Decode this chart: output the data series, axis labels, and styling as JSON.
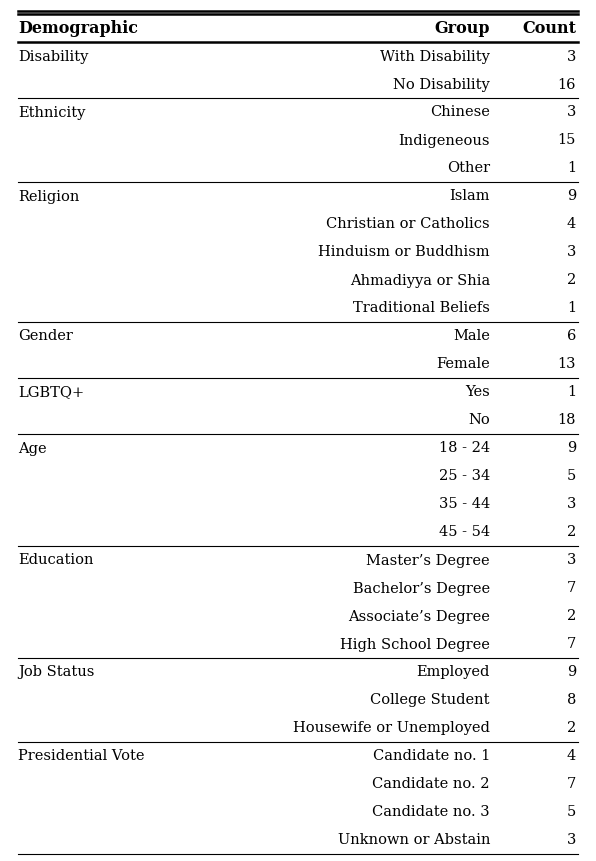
{
  "columns": [
    "Demographic",
    "Group",
    "Count"
  ],
  "rows": [
    [
      "Disability",
      "With Disability",
      "3"
    ],
    [
      "",
      "No Disability",
      "16"
    ],
    [
      "Ethnicity",
      "Chinese",
      "3"
    ],
    [
      "",
      "Indigeneous",
      "15"
    ],
    [
      "",
      "Other",
      "1"
    ],
    [
      "Religion",
      "Islam",
      "9"
    ],
    [
      "",
      "Christian or Catholics",
      "4"
    ],
    [
      "",
      "Hinduism or Buddhism",
      "3"
    ],
    [
      "",
      "Ahmadiyya or Shia",
      "2"
    ],
    [
      "",
      "Traditional Beliefs",
      "1"
    ],
    [
      "Gender",
      "Male",
      "6"
    ],
    [
      "",
      "Female",
      "13"
    ],
    [
      "LGBTQ+",
      "Yes",
      "1"
    ],
    [
      "",
      "No",
      "18"
    ],
    [
      "Age",
      "18 - 24",
      "9"
    ],
    [
      "",
      "25 - 34",
      "5"
    ],
    [
      "",
      "35 - 44",
      "3"
    ],
    [
      "",
      "45 - 54",
      "2"
    ],
    [
      "Education",
      "Master’s Degree",
      "3"
    ],
    [
      "",
      "Bachelor’s Degree",
      "7"
    ],
    [
      "",
      "Associate’s Degree",
      "2"
    ],
    [
      "",
      "High School Degree",
      "7"
    ],
    [
      "Job Status",
      "Employed",
      "9"
    ],
    [
      "",
      "College Student",
      "8"
    ],
    [
      "",
      "Housewife or Unemployed",
      "2"
    ],
    [
      "Presidential Vote",
      "Candidate no. 1",
      "4"
    ],
    [
      "",
      "Candidate no. 2",
      "7"
    ],
    [
      "",
      "Candidate no. 3",
      "5"
    ],
    [
      "",
      "Unknown or Abstain",
      "3"
    ]
  ],
  "section_separators": [
    2,
    5,
    10,
    12,
    14,
    18,
    22,
    25
  ],
  "text_color": "#000000",
  "header_fontsize": 11.5,
  "row_fontsize": 10.5
}
